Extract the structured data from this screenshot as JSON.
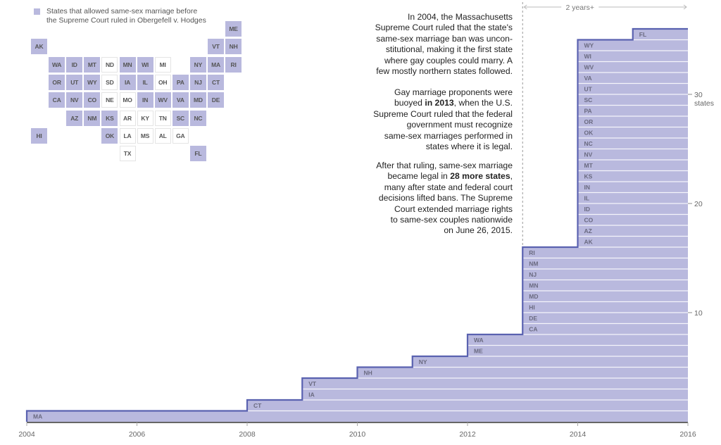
{
  "legend": {
    "label": "States that allowed same-sex marriage before the Supreme Court ruled in Obergefell v. Hodges",
    "line1": "States that allowed same-sex marriage before",
    "line2": "the Supreme Court ruled in Obergefell v. Hodges",
    "color": "#b9b9de"
  },
  "tilemap": {
    "tiles": [
      {
        "state": "ME",
        "row": 0,
        "col": 11,
        "legal": true
      },
      {
        "state": "AK",
        "row": 1,
        "col": 0,
        "legal": true
      },
      {
        "state": "VT",
        "row": 1,
        "col": 10,
        "legal": true
      },
      {
        "state": "NH",
        "row": 1,
        "col": 11,
        "legal": true
      },
      {
        "state": "WA",
        "row": 2,
        "col": 1,
        "legal": true
      },
      {
        "state": "ID",
        "row": 2,
        "col": 2,
        "legal": true
      },
      {
        "state": "MT",
        "row": 2,
        "col": 3,
        "legal": true
      },
      {
        "state": "ND",
        "row": 2,
        "col": 4,
        "legal": false
      },
      {
        "state": "MN",
        "row": 2,
        "col": 5,
        "legal": true
      },
      {
        "state": "WI",
        "row": 2,
        "col": 6,
        "legal": true
      },
      {
        "state": "MI",
        "row": 2,
        "col": 7,
        "legal": false
      },
      {
        "state": "NY",
        "row": 2,
        "col": 9,
        "legal": true
      },
      {
        "state": "MA",
        "row": 2,
        "col": 10,
        "legal": true
      },
      {
        "state": "RI",
        "row": 2,
        "col": 11,
        "legal": true
      },
      {
        "state": "OR",
        "row": 3,
        "col": 1,
        "legal": true
      },
      {
        "state": "UT",
        "row": 3,
        "col": 2,
        "legal": true
      },
      {
        "state": "WY",
        "row": 3,
        "col": 3,
        "legal": true
      },
      {
        "state": "SD",
        "row": 3,
        "col": 4,
        "legal": false
      },
      {
        "state": "IA",
        "row": 3,
        "col": 5,
        "legal": true
      },
      {
        "state": "IL",
        "row": 3,
        "col": 6,
        "legal": true
      },
      {
        "state": "OH",
        "row": 3,
        "col": 7,
        "legal": false
      },
      {
        "state": "PA",
        "row": 3,
        "col": 8,
        "legal": true
      },
      {
        "state": "NJ",
        "row": 3,
        "col": 9,
        "legal": true
      },
      {
        "state": "CT",
        "row": 3,
        "col": 10,
        "legal": true
      },
      {
        "state": "CA",
        "row": 4,
        "col": 1,
        "legal": true
      },
      {
        "state": "NV",
        "row": 4,
        "col": 2,
        "legal": true
      },
      {
        "state": "CO",
        "row": 4,
        "col": 3,
        "legal": true
      },
      {
        "state": "NE",
        "row": 4,
        "col": 4,
        "legal": false
      },
      {
        "state": "MO",
        "row": 4,
        "col": 5,
        "legal": false
      },
      {
        "state": "IN",
        "row": 4,
        "col": 6,
        "legal": true
      },
      {
        "state": "WV",
        "row": 4,
        "col": 7,
        "legal": true
      },
      {
        "state": "VA",
        "row": 4,
        "col": 8,
        "legal": true
      },
      {
        "state": "MD",
        "row": 4,
        "col": 9,
        "legal": true
      },
      {
        "state": "DE",
        "row": 4,
        "col": 10,
        "legal": true
      },
      {
        "state": "AZ",
        "row": 5,
        "col": 2,
        "legal": true
      },
      {
        "state": "NM",
        "row": 5,
        "col": 3,
        "legal": true
      },
      {
        "state": "KS",
        "row": 5,
        "col": 4,
        "legal": true
      },
      {
        "state": "AR",
        "row": 5,
        "col": 5,
        "legal": false
      },
      {
        "state": "KY",
        "row": 5,
        "col": 6,
        "legal": false
      },
      {
        "state": "TN",
        "row": 5,
        "col": 7,
        "legal": false
      },
      {
        "state": "SC",
        "row": 5,
        "col": 8,
        "legal": true
      },
      {
        "state": "NC",
        "row": 5,
        "col": 9,
        "legal": true
      },
      {
        "state": "HI",
        "row": 6,
        "col": 0,
        "legal": true
      },
      {
        "state": "OK",
        "row": 6,
        "col": 4,
        "legal": true
      },
      {
        "state": "LA",
        "row": 6,
        "col": 5,
        "legal": false
      },
      {
        "state": "MS",
        "row": 6,
        "col": 6,
        "legal": false
      },
      {
        "state": "AL",
        "row": 6,
        "col": 7,
        "legal": false
      },
      {
        "state": "GA",
        "row": 6,
        "col": 8,
        "legal": false
      },
      {
        "state": "TX",
        "row": 7,
        "col": 5,
        "legal": false
      },
      {
        "state": "FL",
        "row": 7,
        "col": 9,
        "legal": true
      }
    ]
  },
  "annotations": {
    "p1": "In 2004, the Massachusetts Supreme Court ruled that the state's same-sex marriage ban was unconstitutional, making it the first state where gay couples could marry. A few mostly northern states followed.",
    "p1_lines": [
      "In 2004, the Massachusetts",
      "Supreme Court ruled that the state's",
      "same-sex marriage ban was uncon-",
      "stitutional, making it the first state",
      "where gay couples could marry. A",
      "few mostly northern states followed."
    ],
    "p2_lines": [
      [
        {
          "t": "Gay marriage proponents were"
        }
      ],
      [
        {
          "t": "buoyed "
        },
        {
          "t": "in 2013",
          "b": true
        },
        {
          "t": ", when the U.S."
        }
      ],
      [
        {
          "t": "Supreme Court ruled that the federal"
        }
      ],
      [
        {
          "t": "government must recognize"
        }
      ],
      [
        {
          "t": "same-sex marriages performed in "
        }
      ],
      [
        {
          "t": "states where it is legal."
        }
      ]
    ],
    "p3_lines": [
      [
        {
          "t": "After that ruling, same-sex marriage"
        }
      ],
      [
        {
          "t": "became legal in "
        },
        {
          "t": "28 more states",
          "b": true
        },
        {
          "t": ","
        }
      ],
      [
        {
          "t": "many after state and federal court "
        }
      ],
      [
        {
          "t": "decisions lifted bans. The Supreme "
        }
      ],
      [
        {
          "t": "Court extended marriage rights "
        }
      ],
      [
        {
          "t": "to same-sex couples nationwide"
        }
      ],
      [
        {
          "t": "on June 26, 2015."
        }
      ]
    ]
  },
  "chart_data": {
    "type": "area",
    "subtype": "stacked-step",
    "title": "",
    "xlabel": "",
    "ylabel": "states",
    "xlim": [
      2004,
      2016
    ],
    "ylim": [
      0,
      36
    ],
    "x_ticks": [
      2004,
      2006,
      2008,
      2010,
      2012,
      2014,
      2016
    ],
    "x_tick_labels": [
      "2004",
      "2006",
      "2008",
      "2010",
      "2012",
      "2014",
      "2016"
    ],
    "y_ticks": [
      10,
      20,
      30
    ],
    "y_tick_labels": [
      "10",
      "20",
      "30\nstates"
    ],
    "y_tick_label_top": "30",
    "y_unit_label": "states",
    "grid": false,
    "fill_color": "#b9b9de",
    "line_color": "#5a62b0",
    "span_annotation": {
      "from": 2013,
      "to": 2016,
      "label": "2 years+"
    },
    "states": [
      {
        "state": "MA",
        "year": 2004
      },
      {
        "state": "CT",
        "year": 2008
      },
      {
        "state": "IA",
        "year": 2009
      },
      {
        "state": "VT",
        "year": 2009
      },
      {
        "state": "NH",
        "year": 2010
      },
      {
        "state": "NY",
        "year": 2011
      },
      {
        "state": "ME",
        "year": 2012
      },
      {
        "state": "WA",
        "year": 2012
      },
      {
        "state": "CA",
        "year": 2013
      },
      {
        "state": "DE",
        "year": 2013
      },
      {
        "state": "HI",
        "year": 2013
      },
      {
        "state": "MD",
        "year": 2013
      },
      {
        "state": "MN",
        "year": 2013
      },
      {
        "state": "NJ",
        "year": 2013
      },
      {
        "state": "NM",
        "year": 2013
      },
      {
        "state": "RI",
        "year": 2013
      },
      {
        "state": "AK",
        "year": 2014
      },
      {
        "state": "AZ",
        "year": 2014
      },
      {
        "state": "CO",
        "year": 2014
      },
      {
        "state": "ID",
        "year": 2014
      },
      {
        "state": "IL",
        "year": 2014
      },
      {
        "state": "IN",
        "year": 2014
      },
      {
        "state": "KS",
        "year": 2014
      },
      {
        "state": "MT",
        "year": 2014
      },
      {
        "state": "NV",
        "year": 2014
      },
      {
        "state": "NC",
        "year": 2014
      },
      {
        "state": "OK",
        "year": 2014
      },
      {
        "state": "OR",
        "year": 2014
      },
      {
        "state": "PA",
        "year": 2014
      },
      {
        "state": "SC",
        "year": 2014
      },
      {
        "state": "UT",
        "year": 2014
      },
      {
        "state": "VA",
        "year": 2014
      },
      {
        "state": "WV",
        "year": 2014
      },
      {
        "state": "WI",
        "year": 2014
      },
      {
        "state": "WY",
        "year": 2014
      },
      {
        "state": "FL",
        "year": 2015
      }
    ],
    "cumulative": [
      {
        "year": 2004,
        "count": 1
      },
      {
        "year": 2008,
        "count": 2
      },
      {
        "year": 2009,
        "count": 4
      },
      {
        "year": 2010,
        "count": 5
      },
      {
        "year": 2011,
        "count": 6
      },
      {
        "year": 2012,
        "count": 8
      },
      {
        "year": 2013,
        "count": 16
      },
      {
        "year": 2014,
        "count": 35
      },
      {
        "year": 2015,
        "count": 36
      }
    ]
  }
}
